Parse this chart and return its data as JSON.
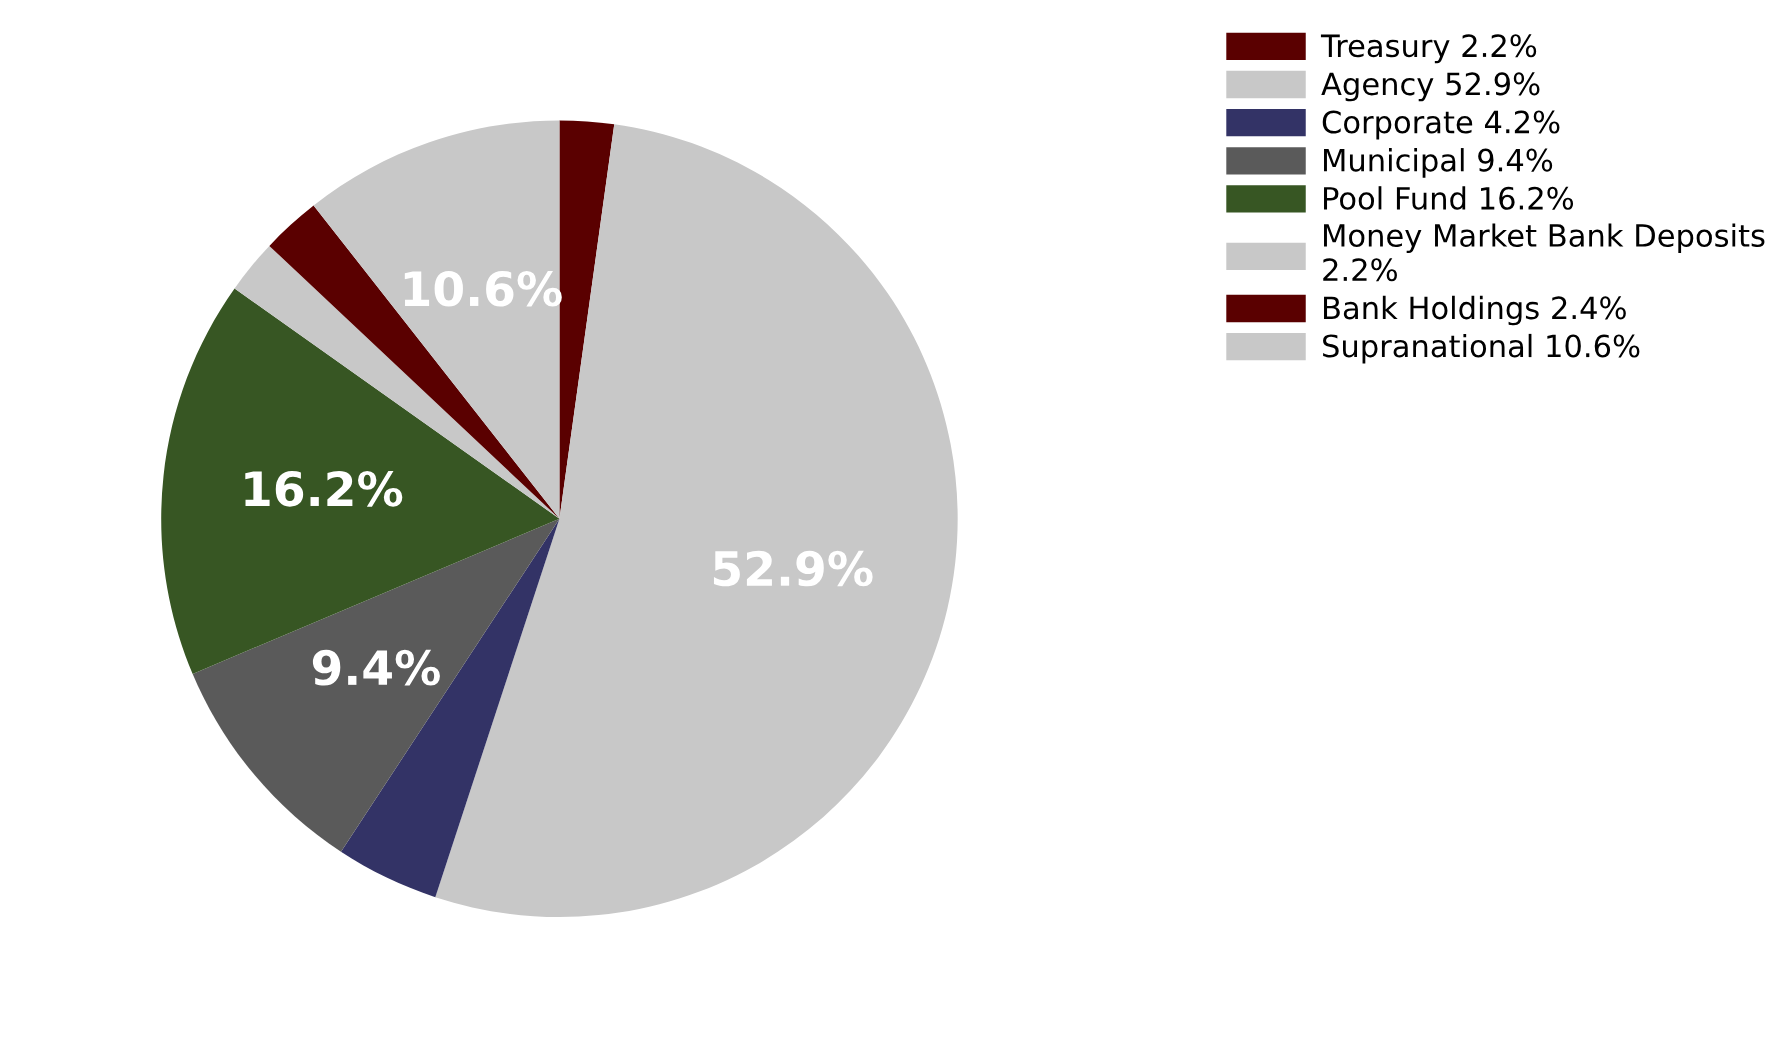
{
  "chart_data": {
    "type": "pie",
    "categories": [
      "Treasury 2.2%",
      "Agency 52.9%",
      "Corporate 4.2%",
      "Municipal 9.4%",
      "Pool Fund 16.2%",
      "Money Market Bank Deposits\n2.2%",
      "Bank Holdings 2.4%",
      "Supranational 10.6%"
    ],
    "values": [
      2.2,
      52.9,
      4.2,
      9.4,
      16.2,
      2.2,
      2.4,
      10.6
    ],
    "colors": [
      "#5a0000",
      "#c8c8c8",
      "#333366",
      "#5a5a5a",
      "#375623",
      "#c8c8c8",
      "#5a0000",
      "#c8c8c8"
    ],
    "value_labels": [
      null,
      "52.9%",
      null,
      "9.4%",
      "16.2%",
      null,
      null,
      "10.6%"
    ],
    "legend": "top right"
  }
}
